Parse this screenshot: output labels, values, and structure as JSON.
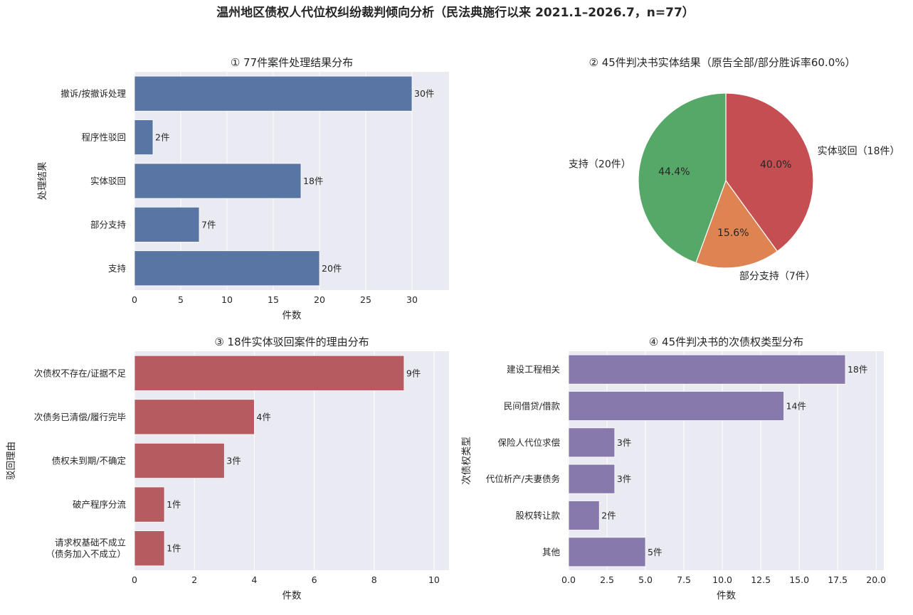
{
  "title": "温州地区债权人代位权纠纷裁判倾向分析（民法典施行以来 2021.1–2026.7，n=77）",
  "chart_data": [
    {
      "type": "bar",
      "orientation": "horizontal",
      "title": "① 77件案件处理结果分布",
      "xlabel": "件数",
      "ylabel": "处理结果",
      "categories": [
        "撤诉/按撤诉处理",
        "程序性驳回",
        "实体驳回",
        "部分支持",
        "支持"
      ],
      "values": [
        30,
        2,
        18,
        7,
        20
      ],
      "value_labels": [
        "30件",
        "2件",
        "18件",
        "7件",
        "20件"
      ],
      "xlim": [
        0,
        34
      ],
      "xticks": [
        0,
        5,
        10,
        15,
        20,
        25,
        30
      ],
      "xtick_labels": [
        "0",
        "5",
        "10",
        "15",
        "20",
        "25",
        "30"
      ],
      "color": "#5875a4",
      "grid": true
    },
    {
      "type": "pie",
      "title": "② 45件判决书实体结果（原告全部/部分胜诉率60.0%）",
      "slices": [
        {
          "label": "实体驳回（18件）",
          "value": 18,
          "pct_label": "40.0%",
          "color": "#c44e52"
        },
        {
          "label": "部分支持（7件）",
          "value": 7,
          "pct_label": "15.6%",
          "color": "#dd8452"
        },
        {
          "label": "支持（20件）",
          "value": 20,
          "pct_label": "44.4%",
          "color": "#55a868"
        }
      ]
    },
    {
      "type": "bar",
      "orientation": "horizontal",
      "title": "③ 18件实体驳回案件的理由分布",
      "xlabel": "件数",
      "ylabel": "驳回理由",
      "categories": [
        "次债权不存在/证据不足",
        "次债务已清偿/履行完毕",
        "债权未到期/不确定",
        "破产程序分流",
        "请求权基础不成立\n（债务加入不成立）"
      ],
      "values": [
        9,
        4,
        3,
        1,
        1
      ],
      "value_labels": [
        "9件",
        "4件",
        "3件",
        "1件",
        "1件"
      ],
      "xlim": [
        0,
        10.5
      ],
      "xticks": [
        0,
        2,
        4,
        6,
        8,
        10
      ],
      "xtick_labels": [
        "0",
        "2",
        "4",
        "6",
        "8",
        "10"
      ],
      "color": "#b65c61",
      "grid": true
    },
    {
      "type": "bar",
      "orientation": "horizontal",
      "title": "④ 45件判决书的次债权类型分布",
      "xlabel": "件数",
      "ylabel": "次债权类型",
      "categories": [
        "建设工程相关",
        "民间借贷/借款",
        "保险人代位求偿",
        "代位析产/夫妻债务",
        "股权转让款",
        "其他"
      ],
      "values": [
        18,
        14,
        3,
        3,
        2,
        5
      ],
      "value_labels": [
        "18件",
        "14件",
        "3件",
        "3件",
        "2件",
        "5件"
      ],
      "xlim": [
        0,
        20.5
      ],
      "xticks": [
        0,
        2.5,
        5,
        7.5,
        10,
        12.5,
        15,
        17.5,
        20
      ],
      "xtick_labels": [
        "0.0",
        "2.5",
        "5.0",
        "7.5",
        "10.0",
        "12.5",
        "15.0",
        "17.5",
        "20.0"
      ],
      "color": "#8779ab",
      "grid": true
    }
  ]
}
